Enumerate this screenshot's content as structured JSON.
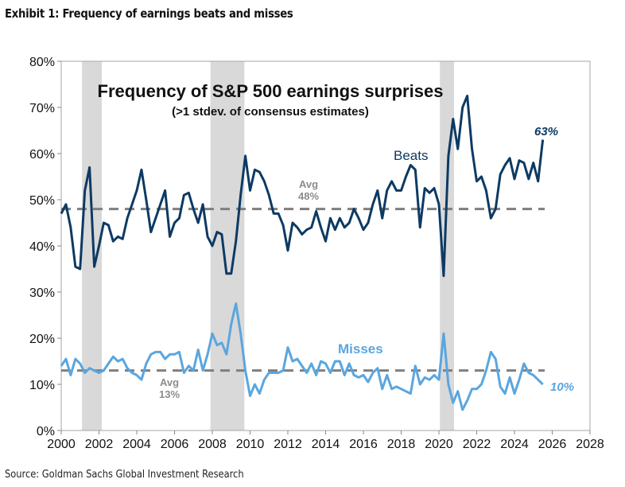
{
  "header": "Exhibit 1: Frequency of earnings beats and misses",
  "source": "Source: Goldman Sachs Global Investment Research",
  "chart_data": {
    "type": "line",
    "title": "Frequency of S&P 500 earnings surprises",
    "subtitle": "(>1 stdev. of consensus estimates)",
    "xlabel": "",
    "ylabel": "",
    "xlim": [
      2000,
      2028
    ],
    "ylim": [
      0,
      80
    ],
    "x_ticks": [
      "2000",
      "2002",
      "2004",
      "2006",
      "2008",
      "2010",
      "2012",
      "2014",
      "2016",
      "2018",
      "2020",
      "2022",
      "2024",
      "2026",
      "2028"
    ],
    "y_ticks": [
      "0%",
      "10%",
      "20%",
      "30%",
      "40%",
      "50%",
      "60%",
      "70%",
      "80%"
    ],
    "recessions": [
      [
        2001.1,
        2002.15
      ],
      [
        2007.9,
        2009.7
      ],
      [
        2020.05,
        2020.8
      ]
    ],
    "x_start": 2000,
    "x_step": 0.25,
    "series": [
      {
        "name": "Beats",
        "color": "#0d3a63",
        "avg": 48,
        "avg_label": [
          "Avg",
          "48%"
        ],
        "end_label": "63%",
        "values": [
          47,
          49,
          44,
          35.5,
          35,
          52,
          57,
          35.5,
          40,
          45,
          44.5,
          41,
          42,
          41.5,
          46,
          49,
          52,
          56.5,
          50,
          43,
          46,
          49,
          52,
          42,
          45,
          46,
          51,
          51.5,
          48,
          45,
          49,
          42,
          40,
          43,
          42.5,
          34,
          34,
          41,
          51,
          59.5,
          52,
          56.5,
          56,
          54,
          51,
          47,
          47,
          44.5,
          39,
          45,
          44,
          42.5,
          43.5,
          44,
          47.5,
          44,
          41,
          46,
          43.5,
          46,
          44,
          45,
          48,
          46,
          43.5,
          45,
          49,
          52,
          46,
          52,
          54,
          52,
          52,
          55,
          57.5,
          56.5,
          44,
          52.5,
          51.5,
          52.5,
          49,
          33.5,
          59.5,
          67.5,
          61,
          70,
          72.5,
          61,
          54,
          55,
          52,
          46,
          48,
          55.5,
          57.5,
          59,
          54.5,
          58.5,
          58,
          54.5,
          58,
          54,
          63
        ]
      },
      {
        "name": "Misses",
        "color": "#5aa6df",
        "avg": 13,
        "avg_label": [
          "Avg",
          "13%"
        ],
        "end_label": "10%",
        "values": [
          14,
          15.5,
          12,
          15.5,
          14.5,
          12.5,
          13.5,
          13,
          12.5,
          13,
          14.5,
          16,
          15,
          15.5,
          13.5,
          12.5,
          12,
          11,
          14.5,
          16.5,
          17,
          17,
          15.5,
          16.5,
          16.5,
          17,
          12.5,
          14,
          13,
          17.5,
          13,
          16.5,
          21,
          18.5,
          19,
          16.5,
          23,
          27.5,
          21,
          13,
          7.5,
          10,
          8,
          11,
          12.5,
          12.5,
          12.5,
          13,
          18,
          15,
          15.5,
          14,
          12.5,
          14.5,
          12,
          15,
          14.5,
          12.5,
          15,
          15,
          12,
          14.5,
          12,
          11.5,
          12,
          10.5,
          12.5,
          13.5,
          9,
          12,
          9,
          9.5,
          9,
          8.5,
          8,
          14,
          10,
          11.5,
          11,
          12,
          11,
          21,
          10,
          6,
          8.5,
          4.5,
          6.5,
          9,
          9,
          10,
          13,
          17,
          15.5,
          9.5,
          8,
          11.5,
          8,
          11,
          14.5,
          12.5,
          12,
          11,
          10
        ]
      }
    ]
  }
}
